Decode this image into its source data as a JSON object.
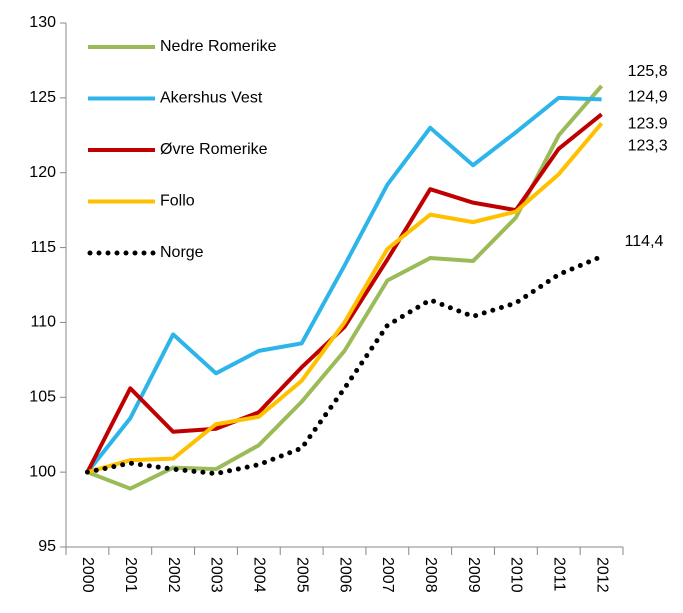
{
  "chart_data": {
    "type": "line",
    "categories": [
      "2000",
      "2001",
      "2002",
      "2003",
      "2004",
      "2005",
      "2006",
      "2007",
      "2008",
      "2009",
      "2010",
      "2011",
      "2012"
    ],
    "series": [
      {
        "name": "Nedre Romerike",
        "color": "#9bbb59",
        "values": [
          100,
          98.9,
          100.3,
          100.2,
          101.8,
          104.7,
          108.1,
          112.8,
          114.3,
          114.1,
          117,
          122.5,
          125.8
        ],
        "value_labels": [
          null,
          null,
          null,
          null,
          null,
          null,
          null,
          null,
          null,
          null,
          null,
          null,
          "125,8"
        ]
      },
      {
        "name": "Akershus Vest",
        "color": "#2db5ea",
        "values": [
          100,
          103.6,
          109.2,
          106.6,
          108.1,
          108.6,
          113.8,
          119.2,
          123,
          120.5,
          122.7,
          125,
          124.9
        ],
        "value_labels": [
          null,
          null,
          null,
          null,
          null,
          null,
          null,
          null,
          null,
          null,
          null,
          null,
          "124,9"
        ]
      },
      {
        "name": "Øvre Romerike",
        "color": "#c00000",
        "values": [
          100,
          105.6,
          102.7,
          102.9,
          104,
          107,
          109.7,
          114.2,
          118.9,
          118,
          117.5,
          121.6,
          123.9
        ],
        "value_labels": [
          null,
          null,
          null,
          null,
          null,
          null,
          null,
          null,
          null,
          null,
          null,
          null,
          "123.9"
        ]
      },
      {
        "name": "Follo",
        "color": "#ffc000",
        "values": [
          100,
          100.8,
          100.9,
          103.2,
          103.7,
          106.1,
          110,
          114.9,
          117.2,
          116.7,
          117.4,
          119.9,
          123.3
        ],
        "value_labels": [
          null,
          null,
          null,
          null,
          null,
          null,
          null,
          null,
          null,
          null,
          null,
          null,
          "123,3"
        ]
      },
      {
        "name": "Norge",
        "color": "#000000",
        "dash": "dotted",
        "values": [
          100,
          100.6,
          100.2,
          99.9,
          100.5,
          101.6,
          105.6,
          109.8,
          111.5,
          110.4,
          111.3,
          113.2,
          114.4
        ],
        "value_labels": [
          null,
          null,
          null,
          null,
          null,
          null,
          null,
          null,
          null,
          null,
          null,
          null,
          "114,4"
        ]
      }
    ],
    "ylim": [
      95,
      130
    ],
    "yticks": [
      95,
      100,
      105,
      110,
      115,
      120,
      125,
      130
    ],
    "legend": "upper left"
  }
}
